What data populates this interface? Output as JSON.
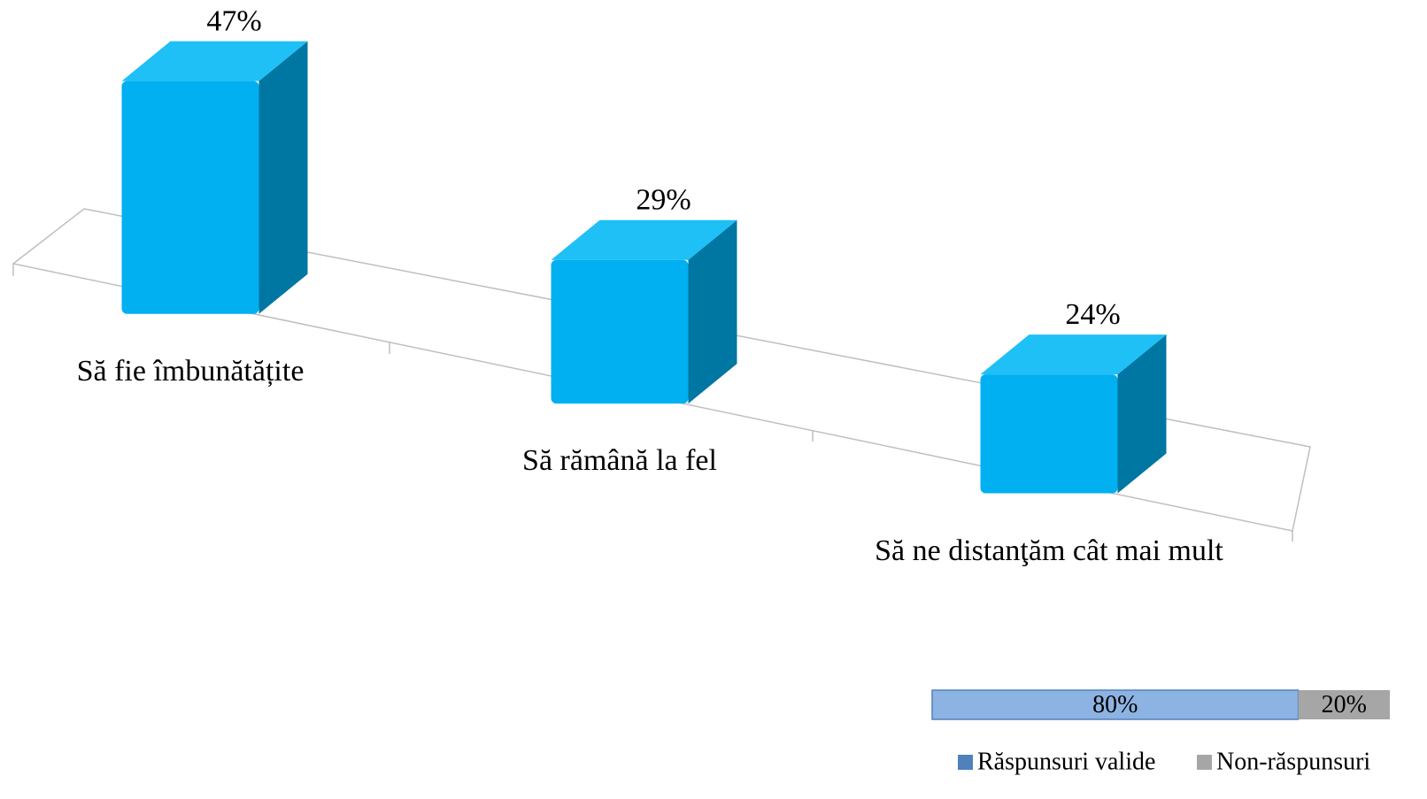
{
  "chart_data": [
    {
      "type": "bar3d",
      "categories": [
        "Să fie îmbunătățite",
        "Să rămână la fel",
        "Să ne distanţăm cât mai mult"
      ],
      "values": [
        47,
        29,
        24
      ],
      "value_labels": [
        "47%",
        "29%",
        "24%"
      ],
      "color": "#00b0f0"
    },
    {
      "type": "stacked_hbar",
      "series": [
        {
          "name": "Răspunsuri valide",
          "color": "#8db3e2",
          "values": [
            80
          ],
          "value_labels": [
            "80%"
          ]
        },
        {
          "name": "Non-răspunsuri",
          "color": "#a6a6a6",
          "values": [
            20
          ],
          "value_labels": [
            "20%"
          ]
        }
      ]
    }
  ]
}
